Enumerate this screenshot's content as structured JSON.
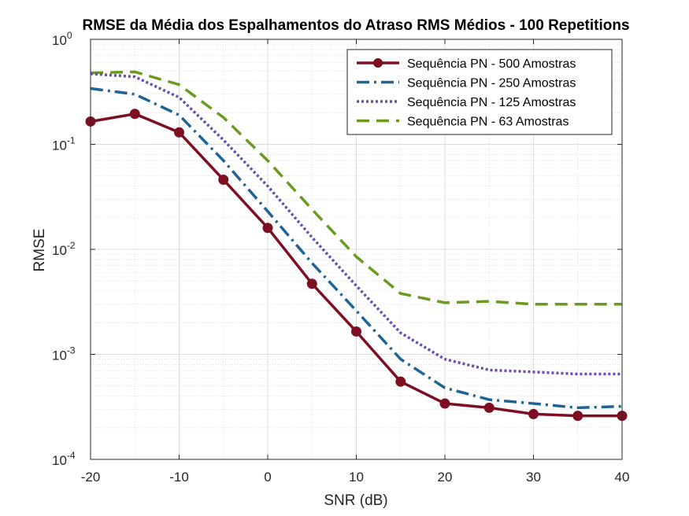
{
  "chart_data": {
    "type": "line",
    "title": "RMSE da Média dos Espalhamentos do Atraso RMS Médios - 100 Repetitions",
    "xlabel": "SNR (dB)",
    "ylabel": "RMSE",
    "xlim": [
      -20,
      40
    ],
    "ylim": [
      0.0001,
      1
    ],
    "yscale": "log",
    "grid": "major and minor",
    "legend_position": "top-right",
    "x_ticks": [
      {
        "value": -20,
        "label": "-20"
      },
      {
        "value": -10,
        "label": "-10"
      },
      {
        "value": 0,
        "label": "0"
      },
      {
        "value": 10,
        "label": "10"
      },
      {
        "value": 20,
        "label": "20"
      },
      {
        "value": 30,
        "label": "30"
      },
      {
        "value": 40,
        "label": "40"
      }
    ],
    "y_ticks": [
      {
        "value": 1,
        "base": "10",
        "exp": "0"
      },
      {
        "value": 0.1,
        "base": "10",
        "exp": "-1"
      },
      {
        "value": 0.01,
        "base": "10",
        "exp": "-2"
      },
      {
        "value": 0.001,
        "base": "10",
        "exp": "-3"
      },
      {
        "value": 0.0001,
        "base": "10",
        "exp": "-4"
      }
    ],
    "x": [
      -20,
      -15,
      -10,
      -5,
      0,
      5,
      10,
      15,
      20,
      25,
      30,
      35,
      40
    ],
    "series": [
      {
        "name": "Sequência PN - 500 Amostras",
        "color": "#7E0F23",
        "style": "solid-marker",
        "values": [
          0.165,
          0.195,
          0.13,
          0.046,
          0.016,
          0.0047,
          0.00165,
          0.00055,
          0.00034,
          0.00031,
          0.00027,
          0.00026,
          0.00026
        ]
      },
      {
        "name": "Sequência PN - 250 Amostras",
        "color": "#1F6594",
        "style": "dash-dot",
        "values": [
          0.34,
          0.3,
          0.19,
          0.07,
          0.023,
          0.0074,
          0.0026,
          0.0009,
          0.00048,
          0.00037,
          0.00034,
          0.00031,
          0.00032
        ]
      },
      {
        "name": "Sequência PN - 125 Amostras",
        "color": "#6A4CB3",
        "style": "dotted",
        "values": [
          0.47,
          0.44,
          0.28,
          0.11,
          0.04,
          0.013,
          0.0045,
          0.0016,
          0.0009,
          0.00071,
          0.00068,
          0.00065,
          0.00065
        ]
      },
      {
        "name": "Sequência PN - 63 Amostras",
        "color": "#6A9A1F",
        "style": "dashed",
        "values": [
          0.48,
          0.49,
          0.37,
          0.18,
          0.07,
          0.024,
          0.0085,
          0.0038,
          0.0031,
          0.0032,
          0.003,
          0.003,
          0.003
        ]
      }
    ]
  }
}
